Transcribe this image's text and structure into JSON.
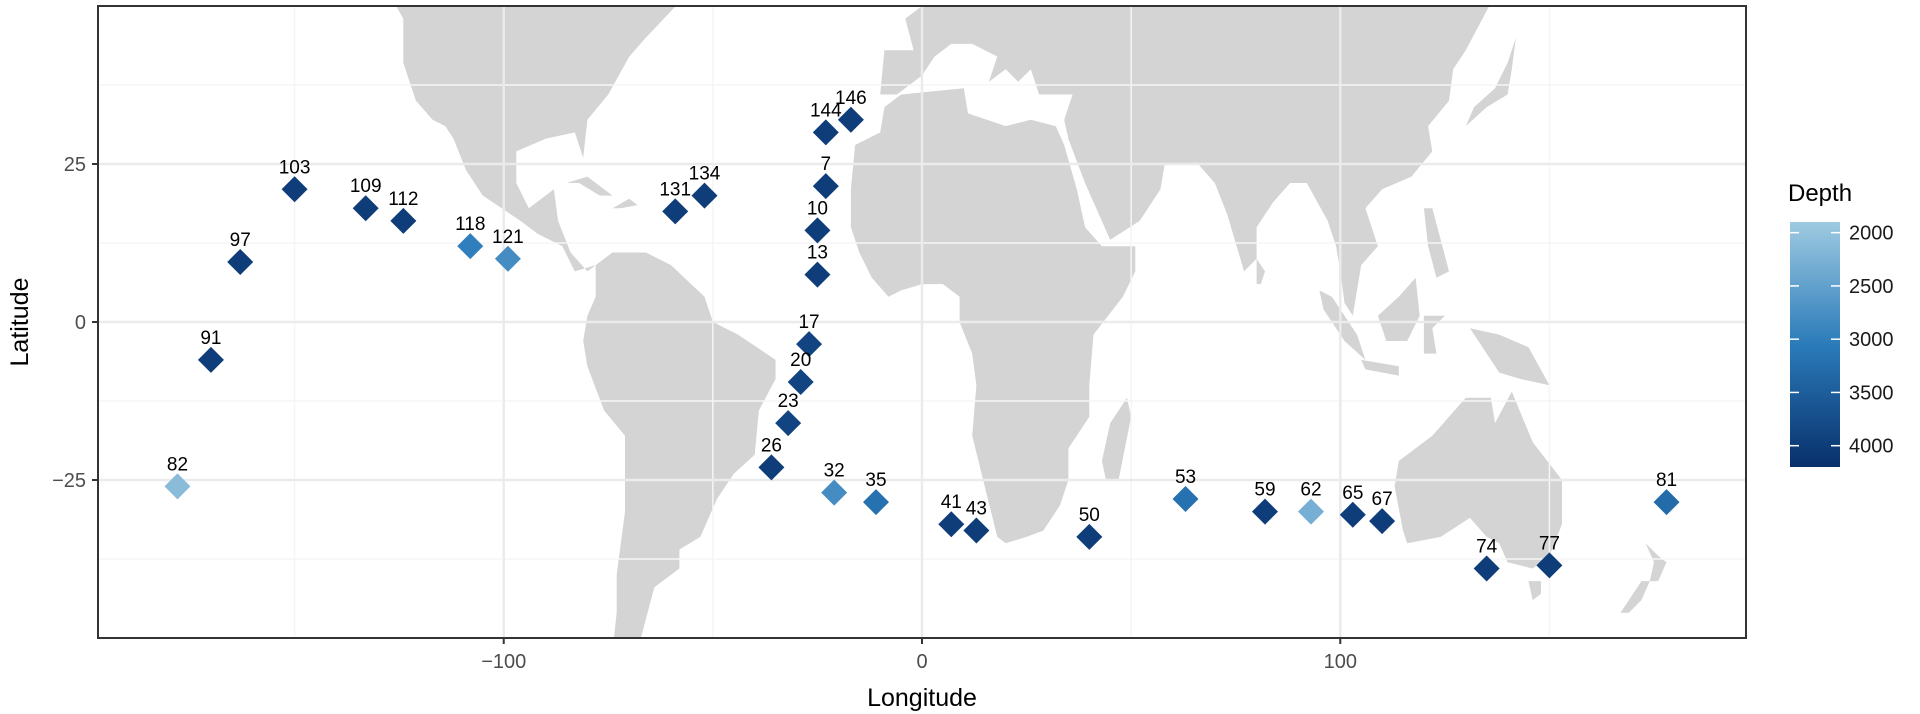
{
  "chart_data": {
    "type": "scatter",
    "title": "",
    "xlabel": "Longitude",
    "ylabel": "Latitude",
    "xlim": [
      -197,
      197
    ],
    "ylim": [
      -50,
      50
    ],
    "x_ticks": [
      -100,
      0,
      100
    ],
    "y_ticks": [
      -25,
      0,
      25
    ],
    "x_tick_labels": [
      "−100",
      "0",
      "100"
    ],
    "y_tick_labels": [
      "−25",
      "0",
      "25"
    ],
    "grid": true,
    "background_map": "world land masses (light grey)",
    "marker": "diamond",
    "legend": {
      "title": "Depth",
      "position": "right",
      "range": [
        1900,
        4200
      ],
      "ticks": [
        2000,
        2500,
        3000,
        3500,
        4000
      ],
      "colors": {
        "low": "#9ecae1",
        "mid": "#2b7bba",
        "high": "#08306b"
      }
    },
    "series": [
      {
        "points": [
          {
            "label": "7",
            "x": -23,
            "y": 21.5,
            "depth": 4000
          },
          {
            "label": "10",
            "x": -25,
            "y": 14.5,
            "depth": 4000
          },
          {
            "label": "13",
            "x": -25,
            "y": 7.5,
            "depth": 4000
          },
          {
            "label": "17",
            "x": -27,
            "y": -3.5,
            "depth": 3900
          },
          {
            "label": "20",
            "x": -29,
            "y": -9.5,
            "depth": 3900
          },
          {
            "label": "23",
            "x": -32,
            "y": -16,
            "depth": 3900
          },
          {
            "label": "26",
            "x": -36,
            "y": -23,
            "depth": 4000
          },
          {
            "label": "32",
            "x": -21,
            "y": -27,
            "depth": 2800
          },
          {
            "label": "35",
            "x": -11,
            "y": -28.5,
            "depth": 3200
          },
          {
            "label": "41",
            "x": 7,
            "y": -32,
            "depth": 4000
          },
          {
            "label": "43",
            "x": 13,
            "y": -33,
            "depth": 4000
          },
          {
            "label": "50",
            "x": 40,
            "y": -34,
            "depth": 4000
          },
          {
            "label": "53",
            "x": 63,
            "y": -28,
            "depth": 3200
          },
          {
            "label": "59",
            "x": 82,
            "y": -30,
            "depth": 4000
          },
          {
            "label": "62",
            "x": 93,
            "y": -30,
            "depth": 2300
          },
          {
            "label": "65",
            "x": 103,
            "y": -30.5,
            "depth": 4000
          },
          {
            "label": "67",
            "x": 110,
            "y": -31.5,
            "depth": 4000
          },
          {
            "label": "74",
            "x": 135,
            "y": -39,
            "depth": 4000
          },
          {
            "label": "77",
            "x": 150,
            "y": -38.5,
            "depth": 4000
          },
          {
            "label": "81",
            "x": 178,
            "y": -28.5,
            "depth": 3300
          },
          {
            "label": "82",
            "x": -178,
            "y": -26,
            "depth": 2100
          },
          {
            "label": "91",
            "x": -170,
            "y": -6,
            "depth": 4000
          },
          {
            "label": "97",
            "x": -163,
            "y": 9.5,
            "depth": 4000
          },
          {
            "label": "103",
            "x": -150,
            "y": 21,
            "depth": 4000
          },
          {
            "label": "109",
            "x": -133,
            "y": 18,
            "depth": 4000
          },
          {
            "label": "112",
            "x": -124,
            "y": 16,
            "depth": 4000
          },
          {
            "label": "118",
            "x": -108,
            "y": 12,
            "depth": 3000
          },
          {
            "label": "121",
            "x": -99,
            "y": 10,
            "depth": 2800
          },
          {
            "label": "131",
            "x": -59,
            "y": 17.5,
            "depth": 4000
          },
          {
            "label": "134",
            "x": -52,
            "y": 20,
            "depth": 4000
          },
          {
            "label": "144",
            "x": -23,
            "y": 30,
            "depth": 4000
          },
          {
            "label": "146",
            "x": -17,
            "y": 32,
            "depth": 4000
          }
        ]
      }
    ]
  },
  "colors": {
    "land": "#d4d4d4",
    "grid_major": "#ebebeb",
    "grid_minor": "#f5f5f5",
    "panel_border": "#333333"
  }
}
